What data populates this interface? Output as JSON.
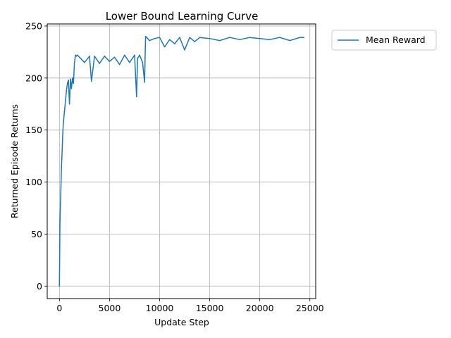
{
  "chart_data": {
    "type": "line",
    "title": "Lower Bound Learning Curve",
    "xlabel": "Update Step",
    "ylabel": "Returned Episode Returns",
    "xlim": [
      -1220,
      25580
    ],
    "ylim": [
      -12,
      252
    ],
    "xticks": [
      0,
      5000,
      10000,
      15000,
      20000,
      25000
    ],
    "yticks": [
      0,
      50,
      100,
      150,
      200,
      250
    ],
    "grid": true,
    "legend_position": "outside-top-right",
    "series": [
      {
        "name": "Mean Reward",
        "color": "#1f77b4",
        "x": [
          0,
          50,
          100,
          150,
          200,
          250,
          300,
          350,
          400,
          500,
          600,
          700,
          800,
          900,
          1000,
          1100,
          1200,
          1300,
          1400,
          1500,
          1600,
          1700,
          1800,
          2000,
          2500,
          3000,
          3200,
          3500,
          4000,
          4500,
          5000,
          5500,
          6000,
          6500,
          7000,
          7500,
          7700,
          7800,
          8000,
          8300,
          8500,
          8550,
          8600,
          9000,
          9500,
          10000,
          10500,
          11000,
          11500,
          12000,
          12500,
          13000,
          13500,
          14000,
          15000,
          16000,
          17000,
          18000,
          19000,
          20000,
          21000,
          22000,
          23000,
          24000,
          24400
        ],
        "values": [
          0,
          62,
          80,
          95,
          115,
          125,
          138,
          150,
          158,
          168,
          178,
          188,
          195,
          198,
          175,
          199,
          190,
          200,
          195,
          215,
          222,
          221,
          222,
          220,
          215,
          221,
          197,
          221,
          214,
          221,
          216,
          220,
          213,
          222,
          215,
          222,
          182,
          219,
          222,
          215,
          196,
          220,
          240,
          236,
          238,
          239,
          230,
          237,
          233,
          239,
          227,
          239,
          235,
          239,
          238,
          236,
          239,
          237,
          239,
          238,
          237,
          239,
          236,
          239,
          239
        ]
      }
    ]
  }
}
